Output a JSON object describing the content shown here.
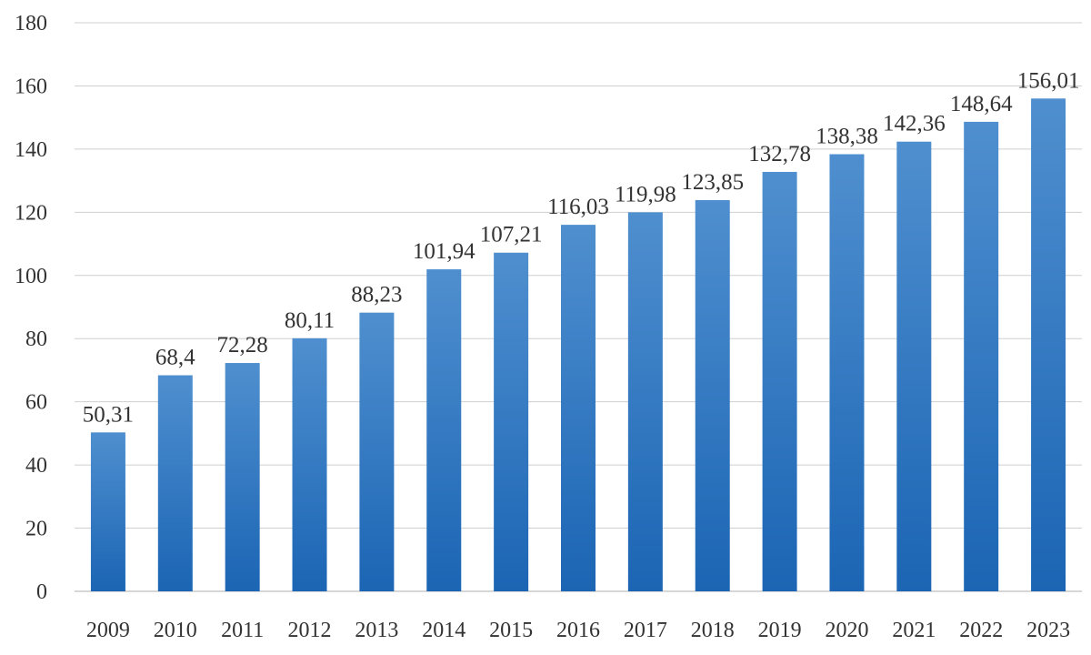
{
  "chart_data": {
    "type": "bar",
    "title": "",
    "xlabel": "",
    "ylabel": "",
    "categories": [
      "2009",
      "2010",
      "2011",
      "2012",
      "2013",
      "2014",
      "2015",
      "2016",
      "2017",
      "2018",
      "2019",
      "2020",
      "2021",
      "2022",
      "2023"
    ],
    "series": [
      {
        "values": [
          50.31,
          68.4,
          72.28,
          80.11,
          88.23,
          101.94,
          107.21,
          116.03,
          119.98,
          123.85,
          132.78,
          138.38,
          142.36,
          148.64,
          156.01
        ],
        "data_labels": [
          "50,31",
          "68,4",
          "72,28",
          "80,11",
          "88,23",
          "101,94",
          "107,21",
          "116,03",
          "119,98",
          "123,85",
          "132,78",
          "138,38",
          "142,36",
          "148,64",
          "156,01"
        ],
        "color": "#2f75c0"
      }
    ],
    "ylim": [
      0,
      180
    ],
    "yticks": [
      0,
      20,
      40,
      60,
      80,
      100,
      120,
      140,
      160,
      180
    ],
    "grid": true,
    "legend": "none",
    "colors": {
      "bar_top": "#4f8fcf",
      "bar_bottom": "#1b65b4",
      "gridline": "#cfcfcf"
    }
  }
}
